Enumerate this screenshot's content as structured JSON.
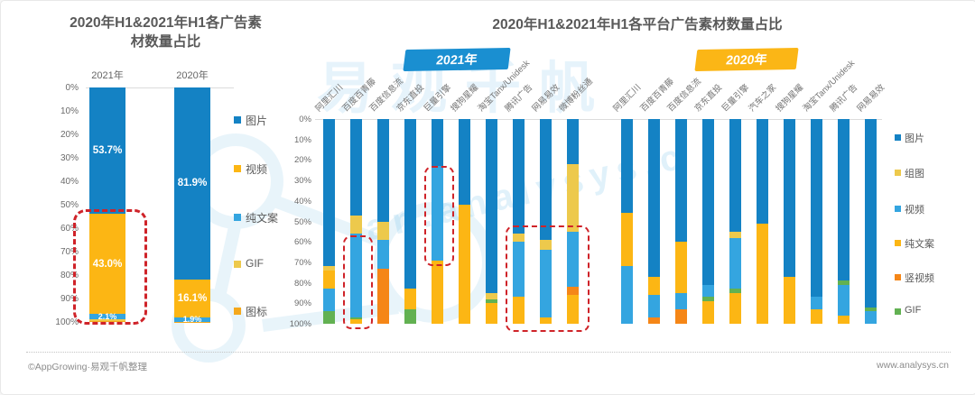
{
  "page": {
    "footer_left": "©AppGrowing·易观千帆整理",
    "footer_right": "www.analysys.cn",
    "watermark_cn": "易观千帆",
    "watermark_en": "an.analysys.c"
  },
  "chart_data": [
    {
      "type": "bar",
      "variant": "stacked-percent",
      "axis": {
        "inverted": true,
        "ylim": [
          0,
          100
        ],
        "grid": false
      },
      "title_lines": [
        "2020年H1&2021年H1各广告素",
        "材数量占比"
      ],
      "yticks": [
        "0%",
        "10%",
        "20%",
        "30%",
        "40%",
        "50%",
        "60%",
        "70%",
        "80%",
        "90%",
        "100%"
      ],
      "legend": [
        {
          "name": "图片",
          "color": "#1482c4"
        },
        {
          "name": "视频",
          "color": "#fcb614"
        },
        {
          "name": "纯文案",
          "color": "#34a5e0"
        },
        {
          "name": "GIF",
          "color": "#edc94c"
        },
        {
          "name": "图标",
          "color": "#f5a81c"
        }
      ],
      "categories": [
        "2021年",
        "2020年"
      ],
      "bars": [
        {
          "category": "2021年",
          "segments": [
            {
              "name": "图片",
              "value": 53.7,
              "label": "53.7%"
            },
            {
              "name": "视频",
              "value": 43.0,
              "label": "43.0%"
            },
            {
              "name": "纯文案",
              "value": 2.1,
              "label": "2.1%"
            },
            {
              "name": "GIF",
              "value": 0.7,
              "label": ""
            },
            {
              "name": "图标",
              "value": 0.5,
              "label": ""
            }
          ]
        },
        {
          "category": "2020年",
          "segments": [
            {
              "name": "图片",
              "value": 81.9,
              "label": "81.9%"
            },
            {
              "name": "视频",
              "value": 16.1,
              "label": "16.1%"
            },
            {
              "name": "纯文案",
              "value": 1.9,
              "label": "1.9%"
            },
            {
              "name": "图标",
              "value": 0.1,
              "label": ""
            }
          ]
        }
      ],
      "annotations": [
        {
          "style": "red-dashed-box",
          "bar": 0,
          "pct_from": 52,
          "pct_to": 99,
          "note": "highlights 2021年 视频 share"
        }
      ]
    },
    {
      "type": "bar",
      "variant": "grouped-stacked-percent",
      "axis": {
        "inverted": true,
        "ylim": [
          0,
          100
        ],
        "grid": false
      },
      "title": "2020年H1&2021年H1各平台广告素材数量占比",
      "yticks": [
        "0%",
        "10%",
        "20%",
        "30%",
        "40%",
        "50%",
        "60%",
        "70%",
        "80%",
        "90%",
        "100%"
      ],
      "legend": [
        {
          "name": "图片",
          "color": "#1482c4"
        },
        {
          "name": "组图",
          "color": "#edc94c"
        },
        {
          "name": "视频",
          "color": "#34a5e0"
        },
        {
          "name": "纯文案",
          "color": "#fcb614"
        },
        {
          "name": "竖视频",
          "color": "#f58617"
        },
        {
          "name": "GIF",
          "color": "#62b152"
        }
      ],
      "groups": [
        {
          "badge": "2021年",
          "badge_color": "#1a8fd1",
          "bars": [
            {
              "platform": "阿里汇川",
              "segments": [
                {
                  "name": "图片",
                  "value": 72
                },
                {
                  "name": "组图",
                  "value": 2
                },
                {
                  "name": "纯文案",
                  "value": 9
                },
                {
                  "name": "视频",
                  "value": 11
                },
                {
                  "name": "GIF",
                  "value": 6
                }
              ]
            },
            {
              "platform": "百度百青藤",
              "segments": [
                {
                  "name": "图片",
                  "value": 47
                },
                {
                  "name": "组图",
                  "value": 9
                },
                {
                  "name": "视频",
                  "value": 41
                },
                {
                  "name": "GIF",
                  "value": 1
                },
                {
                  "name": "纯文案",
                  "value": 2
                }
              ]
            },
            {
              "platform": "百度信息流",
              "segments": [
                {
                  "name": "图片",
                  "value": 50
                },
                {
                  "name": "组图",
                  "value": 9
                },
                {
                  "name": "视频",
                  "value": 14
                },
                {
                  "name": "竖视频",
                  "value": 27
                }
              ]
            },
            {
              "platform": "京东直投",
              "segments": [
                {
                  "name": "图片",
                  "value": 83
                },
                {
                  "name": "纯文案",
                  "value": 10
                },
                {
                  "name": "GIF",
                  "value": 7
                }
              ]
            },
            {
              "platform": "巨量引擎",
              "segments": [
                {
                  "name": "图片",
                  "value": 23
                },
                {
                  "name": "视频",
                  "value": 46
                },
                {
                  "name": "纯文案",
                  "value": 31
                }
              ]
            },
            {
              "platform": "搜狗星耀",
              "segments": [
                {
                  "name": "图片",
                  "value": 42
                },
                {
                  "name": "纯文案",
                  "value": 58
                }
              ]
            },
            {
              "platform": "淘宝Tanx/Unidesk",
              "segments": [
                {
                  "name": "图片",
                  "value": 85
                },
                {
                  "name": "组图",
                  "value": 3
                },
                {
                  "name": "GIF",
                  "value": 2
                },
                {
                  "name": "纯文案",
                  "value": 10
                }
              ]
            },
            {
              "platform": "腾讯广告",
              "segments": [
                {
                  "name": "图片",
                  "value": 56
                },
                {
                  "name": "组图",
                  "value": 4
                },
                {
                  "name": "视频",
                  "value": 27
                },
                {
                  "name": "纯文案",
                  "value": 13
                }
              ]
            },
            {
              "platform": "网易易效",
              "segments": [
                {
                  "name": "图片",
                  "value": 59
                },
                {
                  "name": "组图",
                  "value": 5
                },
                {
                  "name": "视频",
                  "value": 33
                },
                {
                  "name": "纯文案",
                  "value": 3
                }
              ]
            },
            {
              "platform": "微博粉丝通",
              "segments": [
                {
                  "name": "图片",
                  "value": 22
                },
                {
                  "name": "组图",
                  "value": 33
                },
                {
                  "name": "视频",
                  "value": 27
                },
                {
                  "name": "竖视频",
                  "value": 4
                },
                {
                  "name": "纯文案",
                  "value": 14
                }
              ]
            }
          ]
        },
        {
          "badge": "2020年",
          "badge_color": "#fbb616",
          "bars": [
            {
              "platform": "阿里汇川",
              "segments": [
                {
                  "name": "图片",
                  "value": 46
                },
                {
                  "name": "纯文案",
                  "value": 26
                },
                {
                  "name": "视频",
                  "value": 28
                }
              ]
            },
            {
              "platform": "百度百青藤",
              "segments": [
                {
                  "name": "图片",
                  "value": 77
                },
                {
                  "name": "纯文案",
                  "value": 9
                },
                {
                  "name": "视频",
                  "value": 11
                },
                {
                  "name": "竖视频",
                  "value": 3
                }
              ]
            },
            {
              "platform": "百度信息流",
              "segments": [
                {
                  "name": "图片",
                  "value": 60
                },
                {
                  "name": "纯文案",
                  "value": 25
                },
                {
                  "name": "视频",
                  "value": 8
                },
                {
                  "name": "竖视频",
                  "value": 7
                }
              ]
            },
            {
              "platform": "京东直投",
              "segments": [
                {
                  "name": "图片",
                  "value": 81
                },
                {
                  "name": "视频",
                  "value": 6
                },
                {
                  "name": "GIF",
                  "value": 2
                },
                {
                  "name": "纯文案",
                  "value": 11
                }
              ]
            },
            {
              "platform": "巨量引擎",
              "segments": [
                {
                  "name": "图片",
                  "value": 55
                },
                {
                  "name": "组图",
                  "value": 3
                },
                {
                  "name": "视频",
                  "value": 25
                },
                {
                  "name": "GIF",
                  "value": 2
                },
                {
                  "name": "纯文案",
                  "value": 15
                }
              ]
            },
            {
              "platform": "汽车之家",
              "segments": [
                {
                  "name": "图片",
                  "value": 51
                },
                {
                  "name": "纯文案",
                  "value": 49
                }
              ]
            },
            {
              "platform": "搜狗星耀",
              "segments": [
                {
                  "name": "图片",
                  "value": 77
                },
                {
                  "name": "纯文案",
                  "value": 23
                }
              ]
            },
            {
              "platform": "淘宝Tanx/Unidesk",
              "segments": [
                {
                  "name": "图片",
                  "value": 87
                },
                {
                  "name": "视频",
                  "value": 6
                },
                {
                  "name": "纯文案",
                  "value": 7
                }
              ]
            },
            {
              "platform": "腾讯广告",
              "segments": [
                {
                  "name": "图片",
                  "value": 79
                },
                {
                  "name": "GIF",
                  "value": 2
                },
                {
                  "name": "视频",
                  "value": 15
                },
                {
                  "name": "纯文案",
                  "value": 4
                }
              ]
            },
            {
              "platform": "网易易效",
              "segments": [
                {
                  "name": "图片",
                  "value": 92
                },
                {
                  "name": "GIF",
                  "value": 2
                },
                {
                  "name": "视频",
                  "value": 6
                }
              ]
            }
          ]
        }
      ],
      "annotations": [
        {
          "style": "red-dashed-box",
          "group": 0,
          "bar_from": 1,
          "bar_to": 1,
          "pct_from": 57,
          "pct_to": 101,
          "note": "百度百青藤 2021 视频 share"
        },
        {
          "style": "red-dashed-box",
          "group": 0,
          "bar_from": 4,
          "bar_to": 4,
          "pct_from": 23,
          "pct_to": 70,
          "note": "巨量引擎 2021 视频 share"
        },
        {
          "style": "red-dashed-box",
          "group": 0,
          "bar_from": 7,
          "bar_to": 9,
          "pct_from": 52,
          "pct_to": 102,
          "note": "腾讯广告/网易易效/微博粉丝通 2021 视频 share"
        }
      ]
    }
  ]
}
